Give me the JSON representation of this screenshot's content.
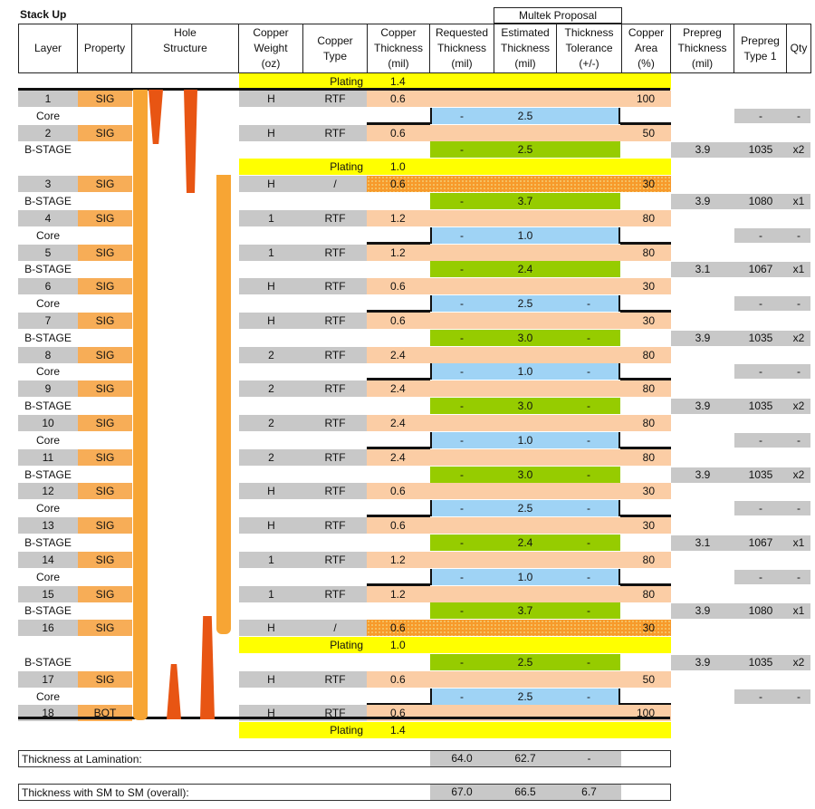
{
  "title": "Stack Up",
  "proposal_label": "Multek Proposal",
  "headers": {
    "layer": "Layer",
    "property": "Property",
    "hole": "Hole\nStructure",
    "cu_weight": "Copper\nWeight\n(oz)",
    "cu_type": "Copper\nType",
    "cu_thick": "Copper\nThickness\n(mil)",
    "req_thick": "Requested\nThickness\n(mil)",
    "est_thick": "Estimated\nThickness\n(mil)",
    "tol": "Thickness\nTolerance\n(+/-)",
    "area": "Copper\nArea\n(%)",
    "pp_thick": "Prepreg\nThickness\n(mil)",
    "pp_type": "Prepreg\nType 1",
    "qty": "Qty"
  },
  "rows": [
    {
      "kind": "plating",
      "type": "Plating",
      "thk": "1.4"
    },
    {
      "kind": "sig",
      "layer": "1",
      "prop": "SIG",
      "w": "H",
      "t": "RTF",
      "thk": "0.6",
      "area": "100"
    },
    {
      "kind": "core",
      "layer": "Core",
      "req": "-",
      "est": "2.5",
      "tol": "",
      "pt": "-",
      "qty": "-"
    },
    {
      "kind": "sig",
      "layer": "2",
      "prop": "SIG",
      "w": "H",
      "t": "RTF",
      "thk": "0.6",
      "area": "50"
    },
    {
      "kind": "bstage",
      "layer": "B-STAGE",
      "req": "-",
      "est": "2.5",
      "tol": "",
      "pth": "3.9",
      "pt": "1035",
      "qty": "x2"
    },
    {
      "kind": "plating",
      "type": "Plating",
      "thk": "1.0"
    },
    {
      "kind": "sig",
      "layer": "3",
      "prop": "SIG",
      "w": "H",
      "t": "/",
      "thk": "0.6",
      "area": "30",
      "dot": true
    },
    {
      "kind": "bstage",
      "layer": "B-STAGE",
      "req": "-",
      "est": "3.7",
      "tol": "",
      "pth": "3.9",
      "pt": "1080",
      "qty": "x1"
    },
    {
      "kind": "sig",
      "layer": "4",
      "prop": "SIG",
      "w": "1",
      "t": "RTF",
      "thk": "1.2",
      "area": "80"
    },
    {
      "kind": "core",
      "layer": "Core",
      "req": "-",
      "est": "1.0",
      "tol": "",
      "pt": "-",
      "qty": "-"
    },
    {
      "kind": "sig",
      "layer": "5",
      "prop": "SIG",
      "w": "1",
      "t": "RTF",
      "thk": "1.2",
      "area": "80"
    },
    {
      "kind": "bstage",
      "layer": "B-STAGE",
      "req": "-",
      "est": "2.4",
      "tol": "",
      "pth": "3.1",
      "pt": "1067",
      "qty": "x1"
    },
    {
      "kind": "sig",
      "layer": "6",
      "prop": "SIG",
      "w": "H",
      "t": "RTF",
      "thk": "0.6",
      "area": "30"
    },
    {
      "kind": "core",
      "layer": "Core",
      "req": "-",
      "est": "2.5",
      "tol": "-",
      "pt": "-",
      "qty": "-"
    },
    {
      "kind": "sig",
      "layer": "7",
      "prop": "SIG",
      "w": "H",
      "t": "RTF",
      "thk": "0.6",
      "area": "30"
    },
    {
      "kind": "bstage",
      "layer": "B-STAGE",
      "req": "-",
      "est": "3.0",
      "tol": "-",
      "pth": "3.9",
      "pt": "1035",
      "qty": "x2"
    },
    {
      "kind": "sig",
      "layer": "8",
      "prop": "SIG",
      "w": "2",
      "t": "RTF",
      "thk": "2.4",
      "area": "80"
    },
    {
      "kind": "core",
      "layer": "Core",
      "req": "-",
      "est": "1.0",
      "tol": "-",
      "pt": "-",
      "qty": "-"
    },
    {
      "kind": "sig",
      "layer": "9",
      "prop": "SIG",
      "w": "2",
      "t": "RTF",
      "thk": "2.4",
      "area": "80"
    },
    {
      "kind": "bstage",
      "layer": "B-STAGE",
      "req": "-",
      "est": "3.0",
      "tol": "-",
      "pth": "3.9",
      "pt": "1035",
      "qty": "x2"
    },
    {
      "kind": "sig",
      "layer": "10",
      "prop": "SIG",
      "w": "2",
      "t": "RTF",
      "thk": "2.4",
      "area": "80"
    },
    {
      "kind": "core",
      "layer": "Core",
      "req": "-",
      "est": "1.0",
      "tol": "-",
      "pt": "-",
      "qty": "-"
    },
    {
      "kind": "sig",
      "layer": "11",
      "prop": "SIG",
      "w": "2",
      "t": "RTF",
      "thk": "2.4",
      "area": "80"
    },
    {
      "kind": "bstage",
      "layer": "B-STAGE",
      "req": "-",
      "est": "3.0",
      "tol": "-",
      "pth": "3.9",
      "pt": "1035",
      "qty": "x2"
    },
    {
      "kind": "sig",
      "layer": "12",
      "prop": "SIG",
      "w": "H",
      "t": "RTF",
      "thk": "0.6",
      "area": "30"
    },
    {
      "kind": "core",
      "layer": "Core",
      "req": "-",
      "est": "2.5",
      "tol": "-",
      "pt": "-",
      "qty": "-"
    },
    {
      "kind": "sig",
      "layer": "13",
      "prop": "SIG",
      "w": "H",
      "t": "RTF",
      "thk": "0.6",
      "area": "30"
    },
    {
      "kind": "bstage",
      "layer": "B-STAGE",
      "req": "-",
      "est": "2.4",
      "tol": "-",
      "pth": "3.1",
      "pt": "1067",
      "qty": "x1"
    },
    {
      "kind": "sig",
      "layer": "14",
      "prop": "SIG",
      "w": "1",
      "t": "RTF",
      "thk": "1.2",
      "area": "80"
    },
    {
      "kind": "core",
      "layer": "Core",
      "req": "-",
      "est": "1.0",
      "tol": "-",
      "pt": "-",
      "qty": "-"
    },
    {
      "kind": "sig",
      "layer": "15",
      "prop": "SIG",
      "w": "1",
      "t": "RTF",
      "thk": "1.2",
      "area": "80"
    },
    {
      "kind": "bstage",
      "layer": "B-STAGE",
      "req": "-",
      "est": "3.7",
      "tol": "-",
      "pth": "3.9",
      "pt": "1080",
      "qty": "x1"
    },
    {
      "kind": "sig",
      "layer": "16",
      "prop": "SIG",
      "w": "H",
      "t": "/",
      "thk": "0.6",
      "area": "30",
      "dot": true
    },
    {
      "kind": "plating",
      "type": "Plating",
      "thk": "1.0"
    },
    {
      "kind": "bstage",
      "layer": "B-STAGE",
      "req": "-",
      "est": "2.5",
      "tol": "-",
      "pth": "3.9",
      "pt": "1035",
      "qty": "x2"
    },
    {
      "kind": "sig",
      "layer": "17",
      "prop": "SIG",
      "w": "H",
      "t": "RTF",
      "thk": "0.6",
      "area": "50"
    },
    {
      "kind": "core",
      "layer": "Core",
      "req": "-",
      "est": "2.5",
      "tol": "-",
      "pt": "-",
      "qty": "-"
    },
    {
      "kind": "sig",
      "layer": "18",
      "prop": "BOT",
      "w": "H",
      "t": "RTF",
      "thk": "0.6",
      "area": "100"
    },
    {
      "kind": "plating",
      "type": "Plating",
      "thk": "1.4"
    }
  ],
  "summary": [
    {
      "label": "Thickness at Lamination:",
      "req": "64.0",
      "est": "62.7",
      "tol": "-"
    },
    {
      "label": "Thickness with SM to SM (overall):",
      "req": "67.0",
      "est": "66.5",
      "tol": "6.7"
    }
  ],
  "colors": {
    "gray": "#c8c8c8",
    "sig_orange": "#f7ad57",
    "copper_peach": "#fbcda5",
    "plating_yellow": "#ffff00",
    "bstage_green": "#96cc00",
    "core_blue": "#9fd3f5",
    "via_orange": "#f7a534",
    "via_red": "#e85513"
  }
}
